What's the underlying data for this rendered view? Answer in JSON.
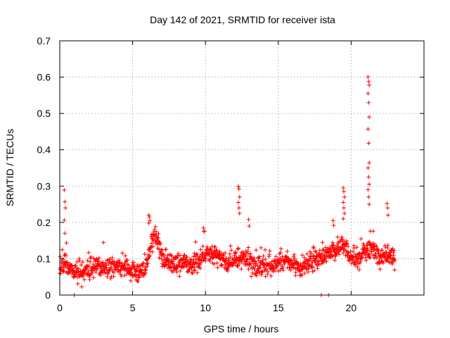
{
  "chart_data": {
    "type": "scatter",
    "title": "Day 142 of 2021, SRMTID for receiver ista",
    "xlabel": "GPS time / hours",
    "ylabel": "SRMTID / TECUs",
    "xlim": [
      0,
      25
    ],
    "ylim": [
      0,
      0.7
    ],
    "xticks": [
      0,
      5,
      10,
      15,
      20
    ],
    "xtick_labels": [
      "0",
      "5",
      "10",
      "15",
      "20"
    ],
    "yticks": [
      0,
      0.1,
      0.2,
      0.3,
      0.4,
      0.5,
      0.6,
      0.7
    ],
    "ytick_labels": [
      "0",
      "0.1",
      "0.2",
      "0.3",
      "0.4",
      "0.5",
      "0.6",
      "0.7"
    ],
    "grid": true,
    "marker": "+",
    "series": [
      {
        "name": "SRMTID",
        "color": "#ff0000",
        "x_range": [
          0,
          23.0
        ],
        "baseline": [
          [
            0.0,
            0.08
          ],
          [
            0.5,
            0.085
          ],
          [
            1.0,
            0.065
          ],
          [
            1.5,
            0.06
          ],
          [
            2.0,
            0.07
          ],
          [
            2.5,
            0.075
          ],
          [
            3.0,
            0.078
          ],
          [
            3.5,
            0.08
          ],
          [
            4.0,
            0.082
          ],
          [
            4.5,
            0.075
          ],
          [
            5.0,
            0.065
          ],
          [
            5.5,
            0.062
          ],
          [
            6.0,
            0.08
          ],
          [
            6.3,
            0.15
          ],
          [
            6.6,
            0.165
          ],
          [
            7.0,
            0.11
          ],
          [
            7.5,
            0.09
          ],
          [
            8.0,
            0.085
          ],
          [
            8.5,
            0.09
          ],
          [
            9.0,
            0.085
          ],
          [
            9.5,
            0.09
          ],
          [
            10.0,
            0.115
          ],
          [
            10.5,
            0.11
          ],
          [
            11.0,
            0.105
          ],
          [
            11.5,
            0.085
          ],
          [
            12.0,
            0.095
          ],
          [
            12.5,
            0.1
          ],
          [
            13.0,
            0.095
          ],
          [
            13.5,
            0.08
          ],
          [
            14.0,
            0.075
          ],
          [
            14.5,
            0.08
          ],
          [
            15.0,
            0.085
          ],
          [
            15.5,
            0.09
          ],
          [
            16.0,
            0.085
          ],
          [
            16.5,
            0.075
          ],
          [
            17.0,
            0.085
          ],
          [
            17.5,
            0.095
          ],
          [
            18.0,
            0.1
          ],
          [
            18.5,
            0.11
          ],
          [
            19.0,
            0.12
          ],
          [
            19.5,
            0.145
          ],
          [
            20.0,
            0.1
          ],
          [
            20.5,
            0.095
          ],
          [
            21.0,
            0.12
          ],
          [
            21.5,
            0.13
          ],
          [
            22.0,
            0.095
          ],
          [
            22.5,
            0.11
          ],
          [
            23.0,
            0.1
          ]
        ],
        "spikes": [
          {
            "x": 0.35,
            "values": [
              0.289,
              0.257,
              0.24,
              0.206,
              0.17
            ]
          },
          {
            "x": 6.15,
            "values": [
              0.22,
              0.215,
              0.205,
              0.198
            ]
          },
          {
            "x": 9.9,
            "values": [
              0.185,
              0.175
            ]
          },
          {
            "x": 12.3,
            "values": [
              0.299,
              0.292,
              0.27,
              0.255,
              0.24,
              0.225
            ]
          },
          {
            "x": 13.0,
            "values": [
              0.208,
              0.19
            ]
          },
          {
            "x": 18.8,
            "values": [
              0.205,
              0.192
            ]
          },
          {
            "x": 19.5,
            "values": [
              0.295,
              0.285,
              0.27,
              0.255,
              0.24,
              0.225,
              0.21
            ]
          },
          {
            "x": 21.2,
            "values": [
              0.601,
              0.588,
              0.578,
              0.555,
              0.53,
              0.49,
              0.457,
              0.418,
              0.364,
              0.35,
              0.325,
              0.305,
              0.29,
              0.27,
              0.25
            ]
          },
          {
            "x": 22.5,
            "values": [
              0.252,
              0.24,
              0.22
            ]
          }
        ],
        "zero_points": [
          1.0,
          17.95,
          18.45
        ]
      }
    ]
  }
}
